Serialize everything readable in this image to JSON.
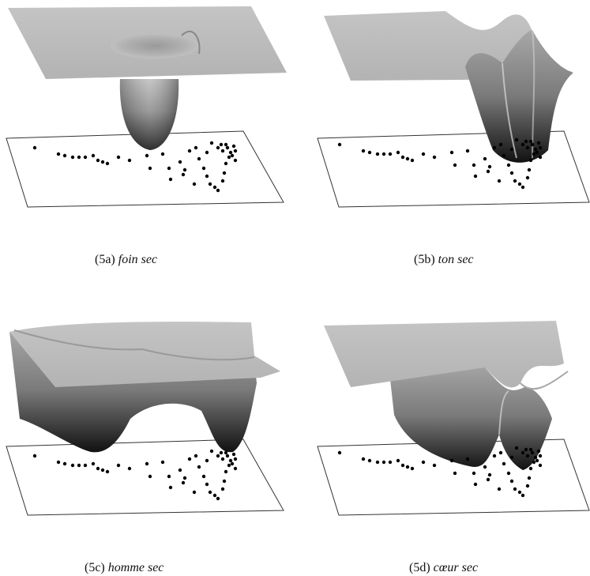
{
  "figure": {
    "panels": [
      {
        "label": "(5a)",
        "word": "foin sec"
      },
      {
        "label": "(5b)",
        "word": "ton sec"
      },
      {
        "label": "(5c)",
        "word": "homme sec"
      },
      {
        "label": "(5d)",
        "word": "cœur sec"
      }
    ]
  }
}
